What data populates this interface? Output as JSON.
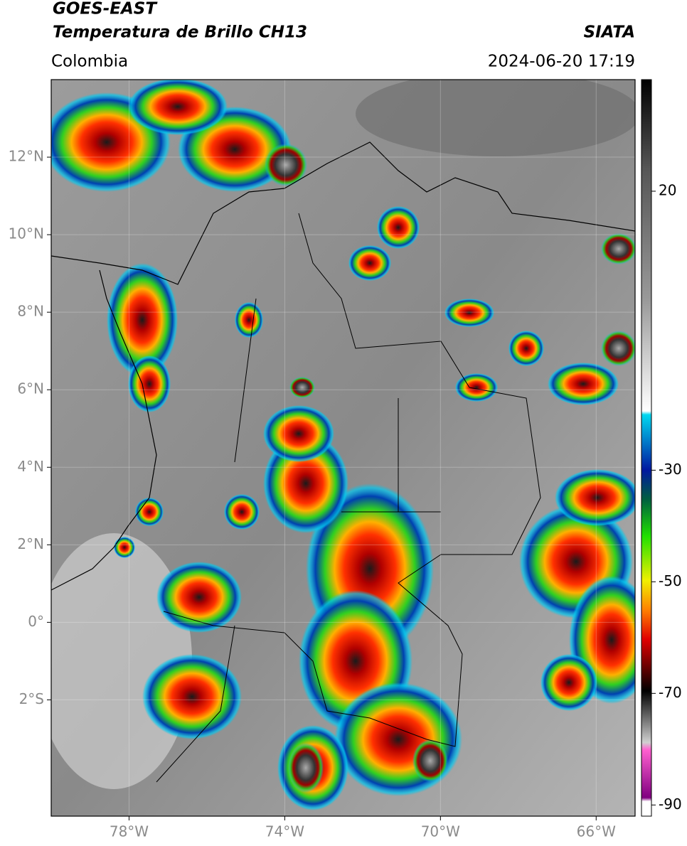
{
  "header": {
    "title_line1": "GOES-EAST",
    "title_line2": "Temperatura de Brillo CH13",
    "source": "SIATA",
    "region": "Colombia",
    "datetime": "2024-06-20 17:19"
  },
  "map": {
    "xlim": [
      -80,
      -65
    ],
    "ylim": [
      -5,
      14
    ],
    "xticks": [
      {
        "value": -78,
        "label": "78°W"
      },
      {
        "value": -74,
        "label": "74°W"
      },
      {
        "value": -70,
        "label": "70°W"
      },
      {
        "value": -66,
        "label": "66°W"
      }
    ],
    "yticks": [
      {
        "value": 12,
        "label": "12°N"
      },
      {
        "value": 10,
        "label": "10°N"
      },
      {
        "value": 8,
        "label": "8°N"
      },
      {
        "value": 6,
        "label": "6°N"
      },
      {
        "value": 4,
        "label": "4°N"
      },
      {
        "value": 2,
        "label": "2°N"
      },
      {
        "value": 0,
        "label": "0°"
      },
      {
        "value": -2,
        "label": "2°S"
      }
    ]
  },
  "colorbar": {
    "clim": [
      -92,
      40
    ],
    "ticks": [
      20,
      -30,
      -50,
      -70,
      -90
    ]
  }
}
